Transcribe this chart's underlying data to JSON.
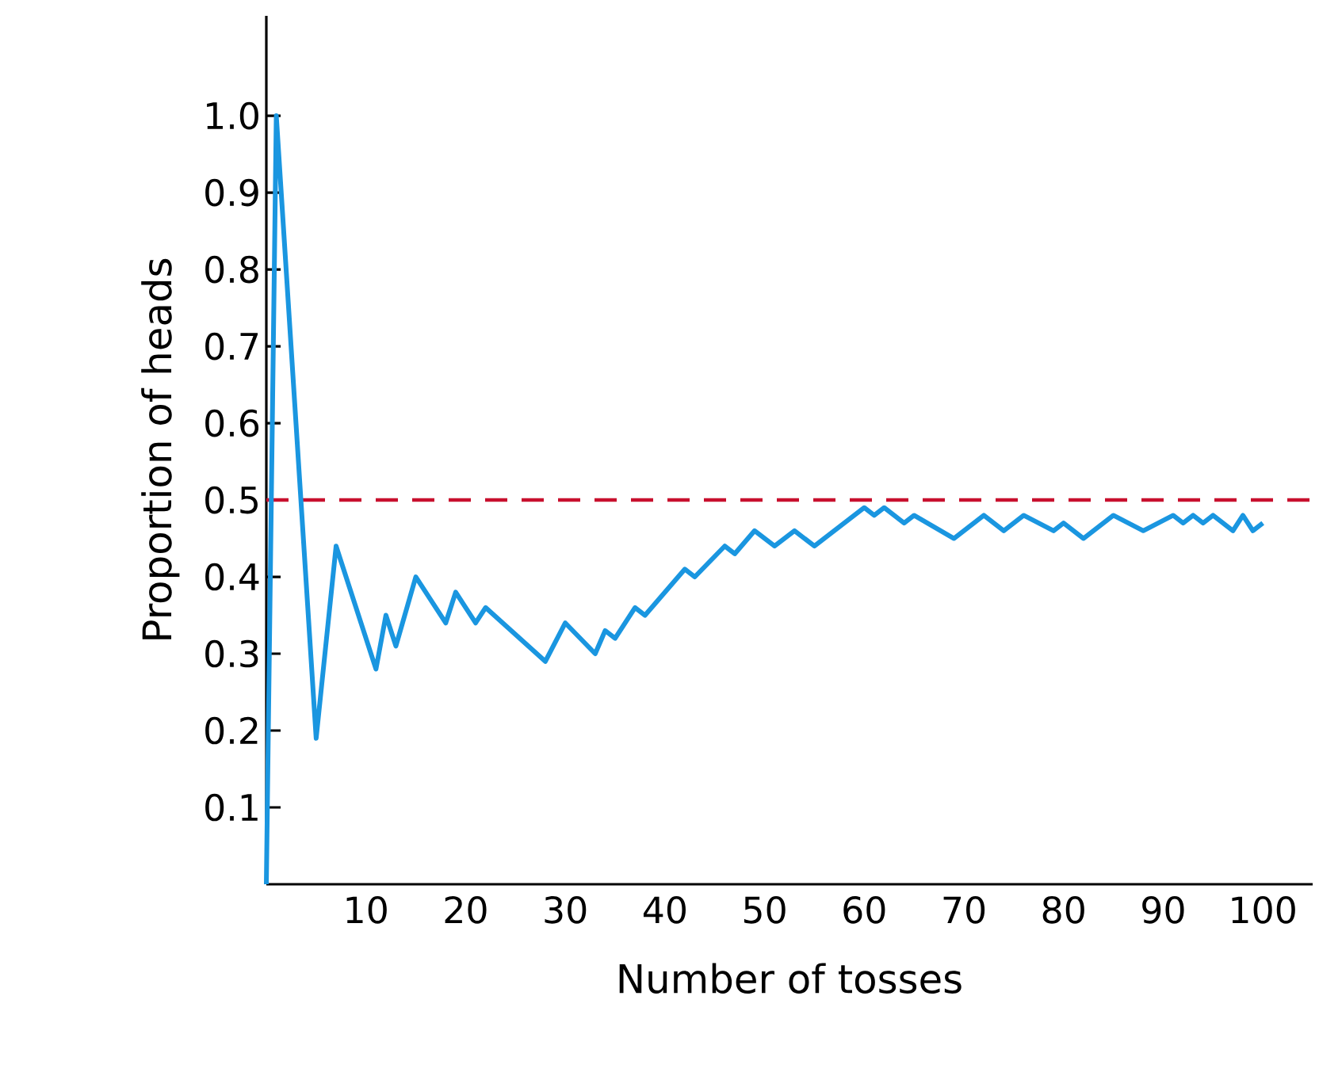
{
  "chart_data": {
    "type": "line",
    "xlabel": "Number of tosses",
    "ylabel": "Proportion of heads",
    "xlim": [
      0,
      105
    ],
    "ylim": [
      0,
      1.13
    ],
    "xticks": [
      10,
      20,
      30,
      40,
      50,
      60,
      70,
      80,
      90,
      100
    ],
    "yticks": [
      0.1,
      0.2,
      0.3,
      0.4,
      0.5,
      0.6,
      0.7,
      0.8,
      0.9,
      {
        "value": 1.0,
        "label": "1.0"
      }
    ],
    "ref_lines": [
      {
        "axis": "y",
        "value": 0.5,
        "color": "#c8102e",
        "line_style": "dashed"
      }
    ],
    "series": [
      {
        "color": "#1a96e0",
        "x": [
          0,
          1,
          5,
          7,
          11,
          12,
          13,
          15,
          18,
          19,
          21,
          22,
          28,
          30,
          33,
          34,
          35,
          37,
          38,
          42,
          43,
          46,
          47,
          49,
          51,
          53,
          55,
          60,
          61,
          62,
          63,
          64,
          65,
          69,
          72,
          74,
          76,
          79,
          80,
          82,
          85,
          88,
          91,
          92,
          93,
          94,
          95,
          97,
          98,
          99,
          100
        ],
        "values": [
          0,
          1.0,
          0.19,
          0.44,
          0.28,
          0.35,
          0.31,
          0.4,
          0.34,
          0.38,
          0.34,
          0.36,
          0.29,
          0.34,
          0.3,
          0.33,
          0.32,
          0.36,
          0.35,
          0.41,
          0.4,
          0.44,
          0.43,
          0.46,
          0.44,
          0.46,
          0.44,
          0.49,
          0.48,
          0.49,
          0.48,
          0.47,
          0.48,
          0.45,
          0.48,
          0.46,
          0.48,
          0.46,
          0.47,
          0.45,
          0.48,
          0.46,
          0.48,
          0.47,
          0.48,
          0.47,
          0.48,
          0.46,
          0.48,
          0.46,
          0.47
        ]
      }
    ]
  }
}
